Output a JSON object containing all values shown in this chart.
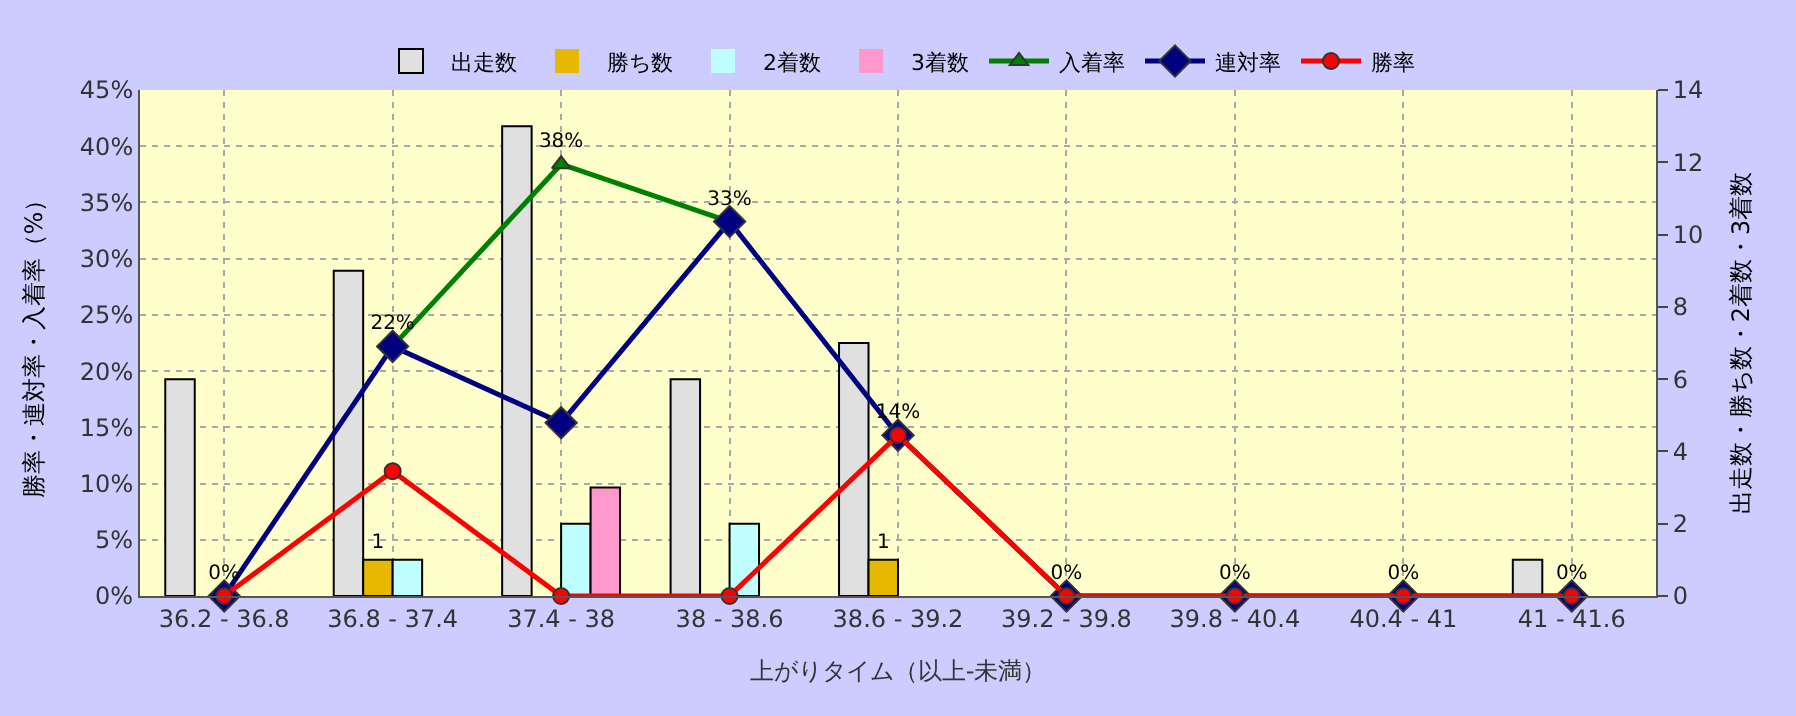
{
  "chart_data": {
    "type": "bar",
    "categories": [
      "36.2 - 36.8",
      "36.8 - 37.4",
      "37.4 - 38",
      "38 - 38.6",
      "38.6 - 39.2",
      "39.2 - 39.8",
      "39.8 - 40.4",
      "40.4 - 41",
      "41 - 41.6"
    ],
    "series": [
      {
        "name": "出走数",
        "axis": "y2",
        "color": "#e0e0e0",
        "values": [
          6,
          9,
          13,
          6,
          7,
          0,
          0,
          0,
          1
        ]
      },
      {
        "name": "勝ち数",
        "axis": "y2",
        "color": "#e6b800",
        "values": [
          0,
          1,
          0,
          0,
          1,
          0,
          0,
          0,
          0
        ],
        "value_labels": [
          null,
          "1",
          null,
          null,
          "1",
          null,
          null,
          null,
          null
        ]
      },
      {
        "name": "2着数",
        "axis": "y2",
        "color": "#c0ffff",
        "values": [
          0,
          1,
          2,
          2,
          0,
          0,
          0,
          0,
          0
        ]
      },
      {
        "name": "3着数",
        "axis": "y2",
        "color": "#ff99cc",
        "values": [
          0,
          0,
          3,
          0,
          0,
          0,
          0,
          0,
          0
        ]
      },
      {
        "name": "入着率",
        "type": "line",
        "color": "#008000",
        "marker": "triangle",
        "values": [
          null,
          22.2,
          38.4,
          33.3,
          null,
          null,
          null,
          null,
          null
        ],
        "value_labels": [
          null,
          "22%",
          "38%",
          "33%",
          null,
          null,
          null,
          null,
          null
        ]
      },
      {
        "name": "連対率",
        "type": "line",
        "color": "#000080",
        "marker": "diamond",
        "values": [
          0,
          22.2,
          15.4,
          33.3,
          14.3,
          0,
          0,
          0,
          0
        ]
      },
      {
        "name": "勝率",
        "type": "line",
        "color": "#ff0000",
        "marker": "circle",
        "values": [
          0,
          11.1,
          0,
          0,
          14.3,
          0,
          0,
          0,
          0
        ],
        "value_labels": [
          "0%",
          null,
          null,
          null,
          "14%",
          "0%",
          "0%",
          "0%",
          "0%"
        ]
      }
    ],
    "xlabel": "上がりタイム（以上-未満）",
    "ylabel": "勝率・連対率・入着率（%）",
    "y2label": "出走数・勝ち数・2着数・3着数",
    "ylim": [
      0,
      45
    ],
    "yticks": [
      {
        "value": 0,
        "label": "0%"
      },
      {
        "value": 5,
        "label": "5%"
      },
      {
        "value": 10,
        "label": "10%"
      },
      {
        "value": 15,
        "label": "15%"
      },
      {
        "value": 20,
        "label": "20%"
      },
      {
        "value": 25,
        "label": "25%"
      },
      {
        "value": 30,
        "label": "30%"
      },
      {
        "value": 35,
        "label": "35%"
      },
      {
        "value": 40,
        "label": "40%"
      },
      {
        "value": 45,
        "label": "45%"
      }
    ],
    "y2lim": [
      0,
      14
    ],
    "y2ticks": [
      0,
      2,
      4,
      6,
      8,
      10,
      12,
      14
    ],
    "grid": true,
    "legend": "top",
    "line_style": "solid"
  }
}
